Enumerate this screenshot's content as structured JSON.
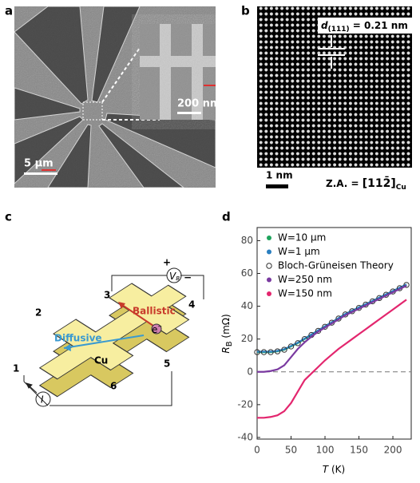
{
  "panels": {
    "a": {
      "label": "a",
      "scale_bar": "5 μm",
      "inset_scale_bar": "200 nm"
    },
    "b": {
      "label": "b",
      "d_symbol": "d",
      "d_subscript": "(111)",
      "d_value": " = 0.21 nm",
      "scale_bar": "1 nm",
      "zone_axis": "Z.A. = ",
      "zone_axis_index": "[112̄]",
      "zone_axis_subscript": "Cu"
    },
    "c": {
      "label": "c",
      "terminals": [
        "1",
        "2",
        "3",
        "4",
        "5",
        "6"
      ],
      "ballistic": "Ballistic",
      "diffusive": "Diffusive",
      "material": "Cu",
      "electron": "e",
      "electron_charge": "−",
      "voltage_symbol": "V",
      "voltage_subscript": "B",
      "plus": "+",
      "minus": "−",
      "current_symbol": "I"
    },
    "d": {
      "label": "d"
    }
  },
  "chart_data": {
    "type": "line",
    "xlabel": "T",
    "xlabel_unit": " (K)",
    "ylabel": "R",
    "ylabel_subscript": "B",
    "ylabel_unit": " (mΩ)",
    "x": [
      0,
      10,
      20,
      30,
      40,
      50,
      60,
      70,
      80,
      90,
      100,
      110,
      120,
      130,
      140,
      150,
      160,
      170,
      180,
      190,
      200,
      210,
      220
    ],
    "series": [
      {
        "name": "W=10 μm",
        "color": "#1ea45c",
        "marker": "line",
        "values": [
          12,
          12,
          12,
          12.5,
          13.5,
          15.5,
          17.5,
          20,
          22.5,
          25,
          27.5,
          30,
          32.5,
          35,
          37,
          39,
          41,
          43,
          45,
          47,
          49,
          51,
          53
        ]
      },
      {
        "name": "W=1 μm",
        "color": "#2a7fc0",
        "marker": "line",
        "values": [
          12.3,
          12.3,
          12.3,
          12.8,
          13.8,
          15.8,
          17.8,
          20.3,
          22.8,
          25.3,
          27.8,
          30.3,
          32.8,
          35.3,
          37.3,
          39.3,
          41.3,
          43.3,
          45.3,
          47.3,
          49.3,
          51.3,
          53.3
        ]
      },
      {
        "name": "Bloch-Grüneisen Theory",
        "color": "#333333",
        "marker": "open-circle",
        "values": [
          12,
          12,
          12,
          12.5,
          13.5,
          15.5,
          17.5,
          20,
          22.5,
          25,
          27.5,
          30,
          32.5,
          35,
          37,
          39,
          41,
          43,
          45,
          47,
          49,
          51,
          53
        ]
      },
      {
        "name": "W=250 nm",
        "color": "#7a3aa0",
        "marker": "line",
        "values": [
          0,
          0,
          0.5,
          1.5,
          4,
          9,
          14,
          18,
          21.5,
          24.5,
          27,
          29.5,
          32,
          34.5,
          36.5,
          38.5,
          40.5,
          42.5,
          44.5,
          46.5,
          48.5,
          50.5,
          52.5
        ]
      },
      {
        "name": "W=150 nm",
        "color": "#e3266e",
        "marker": "line",
        "values": [
          -28,
          -28,
          -27.5,
          -26.5,
          -24,
          -19,
          -12,
          -5,
          -1,
          3,
          7,
          10.5,
          14,
          17,
          20,
          23,
          26,
          29,
          32,
          35,
          38,
          41,
          44
        ]
      }
    ],
    "xlim": [
      0,
      227
    ],
    "ylim": [
      -41,
      88
    ],
    "xticks": [
      0,
      50,
      100,
      150,
      200
    ],
    "yticks": [
      -40,
      -20,
      0,
      20,
      40,
      60,
      80
    ],
    "reference_line": {
      "value": 0,
      "color": "#777777"
    },
    "legend": "upper left"
  }
}
